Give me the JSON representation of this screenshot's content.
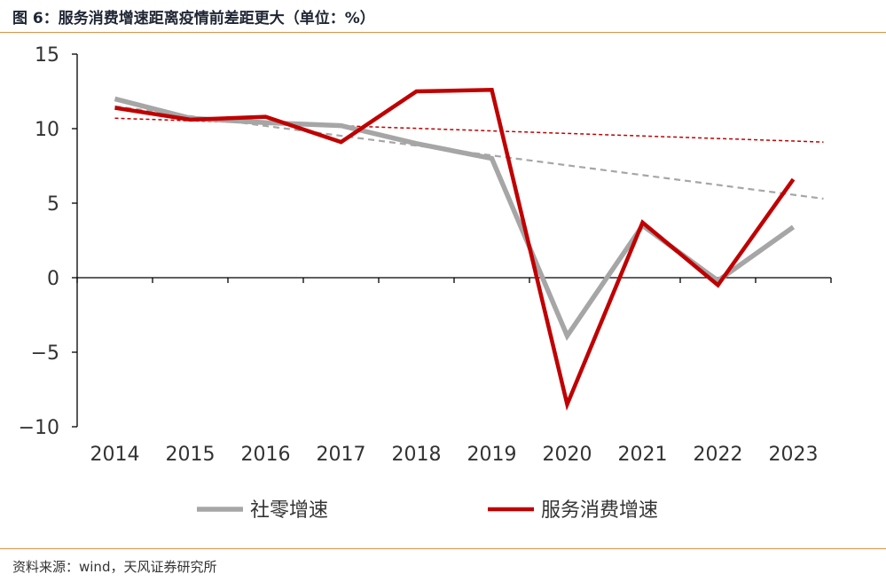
{
  "header": {
    "title": "图 6：服务消费增速距离疫情前差距更大（单位：%）"
  },
  "footer": {
    "source": "资料来源：wind，天风证券研究所"
  },
  "colors": {
    "accent_rule": "#d9924a",
    "retail": "#a6a6a6",
    "service": "#c00000"
  },
  "chart_data": {
    "type": "line",
    "title": "",
    "xlabel": "",
    "ylabel": "",
    "ylim": [
      -10,
      15
    ],
    "yticks": [
      -10,
      -5,
      0,
      5,
      10,
      15
    ],
    "ytick_labels": [
      "−10",
      "−5",
      "0",
      "5",
      "10",
      "15"
    ],
    "categories": [
      "2014",
      "2015",
      "2016",
      "2017",
      "2018",
      "2019",
      "2020",
      "2021",
      "2022",
      "2023"
    ],
    "legend_position": "bottom",
    "grid": false,
    "series": [
      {
        "name": "社零增速",
        "color": "#a6a6a6",
        "values": [
          12.0,
          10.7,
          10.4,
          10.2,
          9.0,
          8.0,
          -3.9,
          3.5,
          -0.2,
          3.4
        ]
      },
      {
        "name": "服务消费增速",
        "color": "#c00000",
        "values": [
          11.4,
          10.6,
          10.8,
          9.1,
          12.5,
          12.6,
          -8.5,
          3.7,
          -0.5,
          6.6
        ]
      }
    ],
    "trendlines": [
      {
        "series": "社零增速",
        "color": "#a6a6a6",
        "style": "dashed",
        "from": [
          2014,
          11.5
        ],
        "to": [
          2023.4,
          5.3
        ]
      },
      {
        "series": "服务消费增速",
        "color": "#c00000",
        "style": "dashed",
        "from": [
          2014,
          10.7
        ],
        "to": [
          2023.4,
          9.1
        ]
      }
    ]
  }
}
